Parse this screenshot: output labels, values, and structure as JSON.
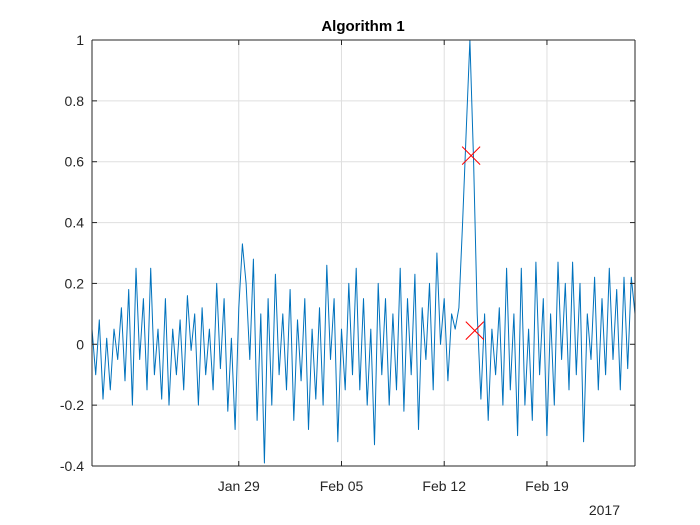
{
  "chart_data": {
    "type": "line",
    "title": "Algorithm 1",
    "xlabel": "",
    "ylabel": "",
    "x_axis_type": "date",
    "x_range": [
      "2017-01-19",
      "2017-02-25"
    ],
    "x_year_label": "2017",
    "x_tick_dates": [
      "2017-01-29",
      "2017-02-05",
      "2017-02-12",
      "2017-02-19"
    ],
    "x_tick_labels": [
      "Jan 29",
      "Feb 05",
      "Feb 12",
      "Feb 19"
    ],
    "ylim": [
      -0.4,
      1
    ],
    "y_ticks": [
      -0.4,
      -0.2,
      0,
      0.2,
      0.4,
      0.6,
      0.8,
      1
    ],
    "y_tick_labels": [
      "-0.4",
      "-0.2",
      "0",
      "0.2",
      "0.4",
      "0.6",
      "0.8",
      "1"
    ],
    "grid": true,
    "series": [
      {
        "color": "#0072BD",
        "points": [
          [
            "2017-01-19T00:00",
            0.05
          ],
          [
            "2017-01-19T06:00",
            -0.1
          ],
          [
            "2017-01-19T12:00",
            0.08
          ],
          [
            "2017-01-19T18:00",
            -0.18
          ],
          [
            "2017-01-20T00:00",
            0.02
          ],
          [
            "2017-01-20T06:00",
            -0.15
          ],
          [
            "2017-01-20T12:00",
            0.05
          ],
          [
            "2017-01-20T18:00",
            -0.05
          ],
          [
            "2017-01-21T00:00",
            0.12
          ],
          [
            "2017-01-21T06:00",
            -0.12
          ],
          [
            "2017-01-21T12:00",
            0.18
          ],
          [
            "2017-01-21T18:00",
            -0.2
          ],
          [
            "2017-01-22T00:00",
            0.25
          ],
          [
            "2017-01-22T06:00",
            -0.05
          ],
          [
            "2017-01-22T12:00",
            0.15
          ],
          [
            "2017-01-22T18:00",
            -0.15
          ],
          [
            "2017-01-23T00:00",
            0.25
          ],
          [
            "2017-01-23T06:00",
            -0.1
          ],
          [
            "2017-01-23T12:00",
            0.05
          ],
          [
            "2017-01-23T18:00",
            -0.18
          ],
          [
            "2017-01-24T00:00",
            0.15
          ],
          [
            "2017-01-24T06:00",
            -0.2
          ],
          [
            "2017-01-24T12:00",
            0.05
          ],
          [
            "2017-01-24T18:00",
            -0.1
          ],
          [
            "2017-01-25T00:00",
            0.08
          ],
          [
            "2017-01-25T06:00",
            -0.15
          ],
          [
            "2017-01-25T12:00",
            0.16
          ],
          [
            "2017-01-25T18:00",
            -0.02
          ],
          [
            "2017-01-26T00:00",
            0.1
          ],
          [
            "2017-01-26T06:00",
            -0.2
          ],
          [
            "2017-01-26T12:00",
            0.12
          ],
          [
            "2017-01-26T18:00",
            -0.1
          ],
          [
            "2017-01-27T00:00",
            0.05
          ],
          [
            "2017-01-27T06:00",
            -0.15
          ],
          [
            "2017-01-27T12:00",
            0.2
          ],
          [
            "2017-01-27T18:00",
            -0.08
          ],
          [
            "2017-01-28T00:00",
            0.15
          ],
          [
            "2017-01-28T06:00",
            -0.22
          ],
          [
            "2017-01-28T12:00",
            0.02
          ],
          [
            "2017-01-28T18:00",
            -0.28
          ],
          [
            "2017-01-29T00:00",
            0.12
          ],
          [
            "2017-01-29T06:00",
            0.33
          ],
          [
            "2017-01-29T12:00",
            0.2
          ],
          [
            "2017-01-29T18:00",
            -0.05
          ],
          [
            "2017-01-30T00:00",
            0.28
          ],
          [
            "2017-01-30T06:00",
            -0.25
          ],
          [
            "2017-01-30T12:00",
            0.1
          ],
          [
            "2017-01-30T18:00",
            -0.39
          ],
          [
            "2017-01-31T00:00",
            0.15
          ],
          [
            "2017-01-31T06:00",
            -0.2
          ],
          [
            "2017-01-31T12:00",
            0.23
          ],
          [
            "2017-01-31T18:00",
            -0.1
          ],
          [
            "2017-02-01T00:00",
            0.1
          ],
          [
            "2017-02-01T06:00",
            -0.15
          ],
          [
            "2017-02-01T12:00",
            0.18
          ],
          [
            "2017-02-01T18:00",
            -0.25
          ],
          [
            "2017-02-02T00:00",
            0.08
          ],
          [
            "2017-02-02T06:00",
            -0.12
          ],
          [
            "2017-02-02T12:00",
            0.15
          ],
          [
            "2017-02-02T18:00",
            -0.28
          ],
          [
            "2017-02-03T00:00",
            0.05
          ],
          [
            "2017-02-03T06:00",
            -0.18
          ],
          [
            "2017-02-03T12:00",
            0.12
          ],
          [
            "2017-02-03T18:00",
            -0.2
          ],
          [
            "2017-02-04T00:00",
            0.26
          ],
          [
            "2017-02-04T06:00",
            -0.05
          ],
          [
            "2017-02-04T12:00",
            0.15
          ],
          [
            "2017-02-04T18:00",
            -0.32
          ],
          [
            "2017-02-05T00:00",
            0.05
          ],
          [
            "2017-02-05T06:00",
            -0.15
          ],
          [
            "2017-02-05T12:00",
            0.2
          ],
          [
            "2017-02-05T18:00",
            -0.1
          ],
          [
            "2017-02-06T00:00",
            0.25
          ],
          [
            "2017-02-06T06:00",
            -0.15
          ],
          [
            "2017-02-06T12:00",
            0.15
          ],
          [
            "2017-02-06T18:00",
            -0.2
          ],
          [
            "2017-02-07T00:00",
            0.05
          ],
          [
            "2017-02-07T06:00",
            -0.33
          ],
          [
            "2017-02-07T12:00",
            0.2
          ],
          [
            "2017-02-07T18:00",
            -0.1
          ],
          [
            "2017-02-08T00:00",
            0.15
          ],
          [
            "2017-02-08T06:00",
            -0.2
          ],
          [
            "2017-02-08T12:00",
            0.1
          ],
          [
            "2017-02-08T18:00",
            -0.15
          ],
          [
            "2017-02-09T00:00",
            0.25
          ],
          [
            "2017-02-09T06:00",
            -0.22
          ],
          [
            "2017-02-09T12:00",
            0.15
          ],
          [
            "2017-02-09T18:00",
            -0.1
          ],
          [
            "2017-02-10T00:00",
            0.23
          ],
          [
            "2017-02-10T06:00",
            -0.28
          ],
          [
            "2017-02-10T12:00",
            0.12
          ],
          [
            "2017-02-10T18:00",
            -0.05
          ],
          [
            "2017-02-11T00:00",
            0.2
          ],
          [
            "2017-02-11T06:00",
            -0.15
          ],
          [
            "2017-02-11T12:00",
            0.3
          ],
          [
            "2017-02-11T18:00",
            0.0
          ],
          [
            "2017-02-12T00:00",
            0.15
          ],
          [
            "2017-02-12T06:00",
            -0.12
          ],
          [
            "2017-02-12T12:00",
            0.1
          ],
          [
            "2017-02-12T18:00",
            0.05
          ],
          [
            "2017-02-13T00:00",
            0.12
          ],
          [
            "2017-02-13T06:00",
            0.4
          ],
          [
            "2017-02-13T12:00",
            0.7
          ],
          [
            "2017-02-13T18:00",
            1.0
          ],
          [
            "2017-02-14T00:00",
            0.6
          ],
          [
            "2017-02-14T06:00",
            0.1
          ],
          [
            "2017-02-14T12:00",
            -0.18
          ],
          [
            "2017-02-14T18:00",
            0.1
          ],
          [
            "2017-02-15T00:00",
            -0.25
          ],
          [
            "2017-02-15T06:00",
            0.05
          ],
          [
            "2017-02-15T12:00",
            -0.1
          ],
          [
            "2017-02-15T18:00",
            0.12
          ],
          [
            "2017-02-16T00:00",
            -0.2
          ],
          [
            "2017-02-16T06:00",
            0.25
          ],
          [
            "2017-02-16T12:00",
            -0.15
          ],
          [
            "2017-02-16T18:00",
            0.1
          ],
          [
            "2017-02-17T00:00",
            -0.3
          ],
          [
            "2017-02-17T06:00",
            0.25
          ],
          [
            "2017-02-17T12:00",
            -0.2
          ],
          [
            "2017-02-17T18:00",
            0.05
          ],
          [
            "2017-02-18T00:00",
            -0.25
          ],
          [
            "2017-02-18T06:00",
            0.27
          ],
          [
            "2017-02-18T12:00",
            -0.1
          ],
          [
            "2017-02-18T18:00",
            0.15
          ],
          [
            "2017-02-19T00:00",
            -0.3
          ],
          [
            "2017-02-19T06:00",
            0.1
          ],
          [
            "2017-02-19T12:00",
            -0.2
          ],
          [
            "2017-02-19T18:00",
            0.27
          ],
          [
            "2017-02-20T00:00",
            -0.05
          ],
          [
            "2017-02-20T06:00",
            0.2
          ],
          [
            "2017-02-20T12:00",
            -0.15
          ],
          [
            "2017-02-20T18:00",
            0.27
          ],
          [
            "2017-02-21T00:00",
            -0.1
          ],
          [
            "2017-02-21T06:00",
            0.2
          ],
          [
            "2017-02-21T12:00",
            -0.32
          ],
          [
            "2017-02-21T18:00",
            0.1
          ],
          [
            "2017-02-22T00:00",
            -0.05
          ],
          [
            "2017-02-22T06:00",
            0.22
          ],
          [
            "2017-02-22T12:00",
            -0.15
          ],
          [
            "2017-02-22T18:00",
            0.15
          ],
          [
            "2017-02-23T00:00",
            -0.1
          ],
          [
            "2017-02-23T06:00",
            0.25
          ],
          [
            "2017-02-23T12:00",
            -0.05
          ],
          [
            "2017-02-23T18:00",
            0.18
          ],
          [
            "2017-02-24T00:00",
            -0.15
          ],
          [
            "2017-02-24T06:00",
            0.22
          ],
          [
            "2017-02-24T12:00",
            -0.08
          ],
          [
            "2017-02-24T18:00",
            0.22
          ],
          [
            "2017-02-25T00:00",
            0.1
          ]
        ]
      }
    ],
    "markers": [
      {
        "x": "2017-02-13T20:00",
        "y": 0.62,
        "symbol": "x",
        "color": "#FF0000"
      },
      {
        "x": "2017-02-14T02:00",
        "y": 0.045,
        "symbol": "x",
        "color": "#FF0000"
      }
    ]
  }
}
